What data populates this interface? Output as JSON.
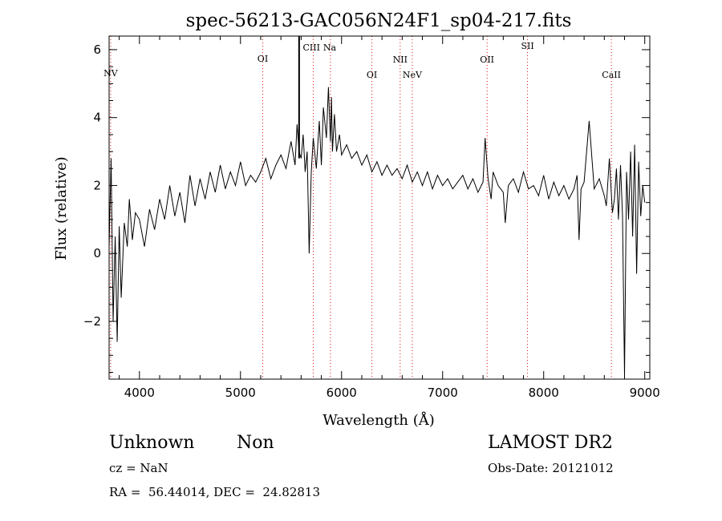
{
  "chart_data": {
    "type": "line",
    "title": "spec-56213-GAC056N24F1_sp04-217.fits",
    "xlabel": "Wavelength (Å)",
    "ylabel": "Flux (relative)",
    "xlim": [
      3700,
      9050
    ],
    "ylim": [
      -3.7,
      6.4
    ],
    "x_ticks": [
      4000,
      5000,
      6000,
      7000,
      8000,
      9000
    ],
    "y_ticks": [
      -2,
      0,
      2,
      4,
      6
    ],
    "grid": false,
    "line_color": "#000000",
    "series": [
      {
        "x": [
          3700,
          3720,
          3740,
          3760,
          3780,
          3800,
          3820,
          3850,
          3880,
          3900,
          3930,
          3960,
          4000,
          4050,
          4100,
          4150,
          4200,
          4250,
          4300,
          4350,
          4400,
          4450,
          4500,
          4550,
          4600,
          4650,
          4700,
          4750,
          4800,
          4850,
          4900,
          4950,
          5000,
          5050,
          5100,
          5150,
          5200,
          5250,
          5300,
          5350,
          5400,
          5450,
          5500,
          5540,
          5560,
          5580,
          5600,
          5620,
          5640,
          5660,
          5680,
          5700,
          5720,
          5750,
          5780,
          5800,
          5820,
          5850,
          5870,
          5890,
          5900,
          5910,
          5930,
          5950,
          5980,
          6000,
          6050,
          6100,
          6150,
          6200,
          6250,
          6300,
          6350,
          6400,
          6450,
          6500,
          6550,
          6600,
          6650,
          6700,
          6750,
          6800,
          6850,
          6900,
          6950,
          7000,
          7050,
          7100,
          7150,
          7200,
          7250,
          7300,
          7350,
          7400,
          7420,
          7450,
          7480,
          7500,
          7550,
          7600,
          7620,
          7650,
          7700,
          7750,
          7800,
          7850,
          7900,
          7950,
          8000,
          8050,
          8100,
          8150,
          8200,
          8250,
          8300,
          8330,
          8350,
          8370,
          8400,
          8450,
          8500,
          8550,
          8600,
          8620,
          8650,
          8680,
          8700,
          8720,
          8740,
          8760,
          8780,
          8800,
          8820,
          8840,
          8860,
          8880,
          8900,
          8920,
          8940,
          8960,
          8980,
          9000
        ],
        "y": [
          0.2,
          2.8,
          -2.0,
          0.5,
          -2.6,
          0.8,
          -1.3,
          0.9,
          0.2,
          1.6,
          0.4,
          1.2,
          1.0,
          0.2,
          1.3,
          0.7,
          1.6,
          1.0,
          2.0,
          1.1,
          1.8,
          0.9,
          2.3,
          1.4,
          2.2,
          1.6,
          2.4,
          1.8,
          2.6,
          1.9,
          2.4,
          2.0,
          2.7,
          2.0,
          2.3,
          2.1,
          2.4,
          2.8,
          2.2,
          2.6,
          2.9,
          2.5,
          3.3,
          2.6,
          3.8,
          3.0,
          2.8,
          3.5,
          2.4,
          3.0,
          0.0,
          2.4,
          3.4,
          2.5,
          3.9,
          2.6,
          4.3,
          3.4,
          4.9,
          3.3,
          4.6,
          3.0,
          4.1,
          3.0,
          3.5,
          2.9,
          3.2,
          2.8,
          3.0,
          2.6,
          2.9,
          2.4,
          2.7,
          2.3,
          2.6,
          2.3,
          2.5,
          2.2,
          2.6,
          2.1,
          2.4,
          2.0,
          2.4,
          1.9,
          2.3,
          2.0,
          2.2,
          1.9,
          2.1,
          2.3,
          1.9,
          2.2,
          1.8,
          2.1,
          3.4,
          2.2,
          1.6,
          2.4,
          2.0,
          1.8,
          0.9,
          2.0,
          2.2,
          1.8,
          2.4,
          1.9,
          2.0,
          1.7,
          2.3,
          1.6,
          2.1,
          1.7,
          2.0,
          1.6,
          1.9,
          2.3,
          0.4,
          1.9,
          2.1,
          3.9,
          1.9,
          2.2,
          1.7,
          1.4,
          2.8,
          1.2,
          1.6,
          2.5,
          1.0,
          2.6,
          1.1,
          -3.6,
          2.4,
          1.0,
          3.0,
          0.5,
          3.2,
          -0.6,
          2.7,
          1.1,
          2.0,
          1.5
        ]
      }
    ],
    "spike": {
      "x": 5580,
      "y_top": 6.4,
      "y_bottom": 2.8
    },
    "lines": [
      {
        "label": "NV",
        "x": 3715
      },
      {
        "label": "OI",
        "x": 5220
      },
      {
        "label": "CIII",
        "x": 5720
      },
      {
        "label": "Na",
        "x": 5890
      },
      {
        "label": "OI",
        "x": 6300
      },
      {
        "label": "NII",
        "x": 6580
      },
      {
        "label": "NeV",
        "x": 6700
      },
      {
        "label": "OII",
        "x": 7440
      },
      {
        "label": "SII",
        "x": 7840
      },
      {
        "label": "CaII",
        "x": 8670
      }
    ]
  },
  "info": {
    "class_label": "Unknown",
    "subclass_label": "Non",
    "survey": "LAMOST DR2",
    "cz": "cz = NaN",
    "obs_date": "Obs-Date: 20121012",
    "coords": "RA =  56.44014, DEC =  24.82813"
  }
}
